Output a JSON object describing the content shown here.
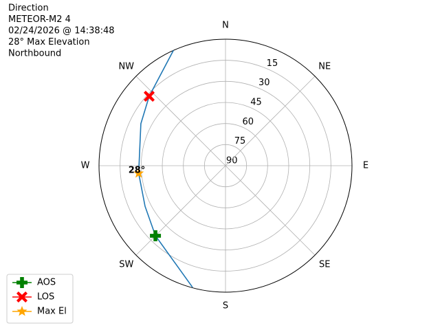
{
  "chart_data": {
    "type": "polar",
    "title": [
      "Direction",
      "METEOR-M2 4",
      "02/24/2026 @ 14:38:48",
      "28° Max Elevation",
      "Northbound"
    ],
    "xticks": [
      {
        "value": 0,
        "label": "N"
      },
      {
        "value": 45,
        "label": "NE"
      },
      {
        "value": 90,
        "label": "E"
      },
      {
        "value": 135,
        "label": "SE"
      },
      {
        "value": 180,
        "label": "S"
      },
      {
        "value": 225,
        "label": "SW"
      },
      {
        "value": 270,
        "label": "W"
      },
      {
        "value": 315,
        "label": "NW"
      }
    ],
    "ylim": [
      90,
      0
    ],
    "yticks": [
      90,
      75,
      60,
      45,
      30,
      15
    ],
    "grid": true,
    "legend": "lower left",
    "track": {
      "color": "#1f77b4",
      "x": [
        195.2,
        225,
        243.2,
        265,
        296.4,
        312.3,
        335.7
      ],
      "values": [
        0.4,
        19.5,
        25.9,
        28,
        22.8,
        16.6,
        0
      ]
    },
    "series": [
      {
        "name": "AOS",
        "color": "#008000",
        "marker": "plus",
        "x": [
          225
        ],
        "values": [
          19.5
        ]
      },
      {
        "name": "LOS",
        "color": "#ff0000",
        "marker": "x",
        "x": [
          312.3
        ],
        "values": [
          16.6
        ]
      },
      {
        "name": "Max El",
        "color": "#ffa500",
        "marker": "star",
        "x": [
          265
        ],
        "values": [
          28
        ],
        "value_labels": [
          "28°"
        ]
      }
    ]
  }
}
